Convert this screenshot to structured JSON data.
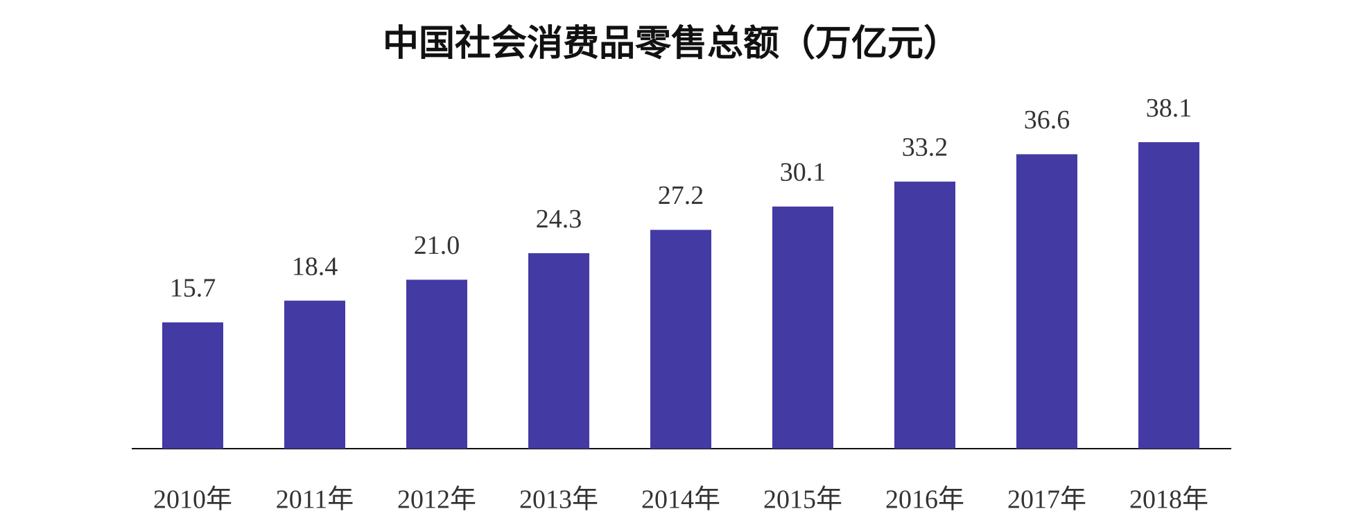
{
  "chart_data": {
    "type": "bar",
    "title": "中国社会消费品零售总额（万亿元）",
    "categories": [
      "2010年",
      "2011年",
      "2012年",
      "2013年",
      "2014年",
      "2015年",
      "2016年",
      "2017年",
      "2018年"
    ],
    "values": [
      15.7,
      18.4,
      21.0,
      24.3,
      27.2,
      30.1,
      33.2,
      36.6,
      38.1
    ],
    "value_labels": [
      "15.7",
      "18.4",
      "21.0",
      "24.3",
      "27.2",
      "30.1",
      "33.2",
      "36.6",
      "38.1"
    ],
    "color": "#433aa4"
  }
}
